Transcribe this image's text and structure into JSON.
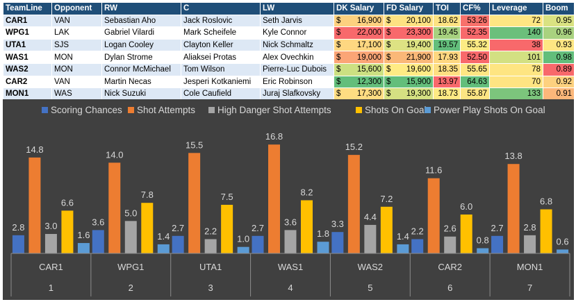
{
  "table": {
    "headers": [
      "TeamLine",
      "Opponent",
      "RW",
      "C",
      "LW",
      "DK Salary",
      "FD Salary",
      "TOI",
      "CF%",
      "Leverage",
      "Boom"
    ],
    "currency_symbol": "$",
    "rows": [
      {
        "team": "CAR1",
        "opponent": "VAN",
        "rw": "Sebastian Aho",
        "c": "Jack Roslovic",
        "lw": "Seth Jarvis",
        "dk": "16,900",
        "fd": "20,100",
        "toi": "18.62",
        "cf": "53.26",
        "leverage": "72",
        "boom": "0.95",
        "colors": {
          "dk": "#fdd17f",
          "fd": "#fde282",
          "toi": "#fde382",
          "cf": "#f8716b",
          "leverage": "#fee683",
          "boom": "#dae282"
        }
      },
      {
        "team": "WPG1",
        "opponent": "LAK",
        "rw": "Gabriel Vilardi",
        "c": "Mark Scheifele",
        "lw": "Kyle Connor",
        "dk": "22,000",
        "fd": "23,300",
        "toi": "19.45",
        "cf": "52.35",
        "leverage": "140",
        "boom": "0.96",
        "colors": {
          "dk": "#f8696b",
          "fd": "#f8696b",
          "toi": "#a7d27f",
          "cf": "#f8696b",
          "leverage": "#6bbf7b",
          "boom": "#a9d27f"
        }
      },
      {
        "team": "UTA1",
        "opponent": "SJS",
        "rw": "Logan Cooley",
        "c": "Clayton Keller",
        "lw": "Nick Schmaltz",
        "dk": "17,100",
        "fd": "19,400",
        "toi": "19.57",
        "cf": "55.32",
        "leverage": "38",
        "boom": "0.93",
        "colors": {
          "dk": "#fed781",
          "fd": "#dde283",
          "toi": "#63be7b",
          "cf": "#fdeb84",
          "leverage": "#f8696b",
          "boom": "#fee783"
        }
      },
      {
        "team": "WAS1",
        "opponent": "MON",
        "rw": "Dylan Strome",
        "c": "Aliaksei Protas",
        "lw": "Alex Ovechkin",
        "dk": "19,000",
        "fd": "21,900",
        "toi": "17.93",
        "cf": "52.50",
        "leverage": "101",
        "boom": "0.98",
        "colors": {
          "dk": "#fba576",
          "fd": "#fab878",
          "toi": "#fed780",
          "cf": "#f8696b",
          "leverage": "#d3e082",
          "boom": "#63be7b"
        }
      },
      {
        "team": "WAS2",
        "opponent": "MON",
        "rw": "Connor McMichael",
        "c": "Tom Wilson",
        "lw": "Pierre-Luc Dubois",
        "dk": "15,600",
        "fd": "19,600",
        "toi": "18.35",
        "cf": "55.65",
        "leverage": "78",
        "boom": "0.89",
        "colors": {
          "dk": "#cce082",
          "fd": "#ffeb84",
          "toi": "#fedf82",
          "cf": "#fee683",
          "leverage": "#fee582",
          "boom": "#f8696b"
        }
      },
      {
        "team": "CAR2",
        "opponent": "VAN",
        "rw": "Martin Necas",
        "c": "Jesperi Kotkaniemi",
        "lw": "Eric Robinson",
        "dk": "12,300",
        "fd": "15,900",
        "toi": "13.97",
        "cf": "64.63",
        "leverage": "70",
        "boom": "0.92",
        "colors": {
          "dk": "#63be7b",
          "fd": "#63be7b",
          "toi": "#f8696b",
          "cf": "#63be7b",
          "leverage": "#fee482",
          "boom": "#fdd17f"
        }
      },
      {
        "team": "MON1",
        "opponent": "WAS",
        "rw": "Nick Suzuki",
        "c": "Cole Caufield",
        "lw": "Juraj Slafkovsky",
        "dk": "17,300",
        "fd": "19,300",
        "toi": "18.73",
        "cf": "55.87",
        "leverage": "133",
        "boom": "0.91",
        "colors": {
          "dk": "#fedd82",
          "fd": "#d5e082",
          "toi": "#feea83",
          "cf": "#fde583",
          "leverage": "#7cc57c",
          "boom": "#fcb77a"
        }
      }
    ]
  },
  "chart_data": {
    "type": "bar",
    "title": "",
    "xlabel": "",
    "ylabel": "",
    "ylim": [
      0,
      18
    ],
    "grid": false,
    "legend_position": "top",
    "categories": [
      "CAR1",
      "WPG1",
      "UTA1",
      "WAS1",
      "WAS2",
      "CAR2",
      "MON1"
    ],
    "category_groups": [
      "1",
      "2",
      "3",
      "4",
      "5",
      "6",
      "7"
    ],
    "series": [
      {
        "name": "Scoring Chances",
        "color": "#4472c4",
        "values": [
          2.8,
          3.6,
          2.7,
          2.7,
          3.3,
          2.2,
          2.7
        ]
      },
      {
        "name": "Shot Attempts",
        "color": "#ed7d31",
        "values": [
          14.8,
          14.0,
          15.5,
          16.8,
          15.2,
          11.6,
          13.8
        ]
      },
      {
        "name": "High Danger Shot Attempts",
        "color": "#a5a5a5",
        "values": [
          3.0,
          5.0,
          2.2,
          3.6,
          4.4,
          2.6,
          2.8
        ]
      },
      {
        "name": "Shots On Goal",
        "color": "#ffc000",
        "values": [
          6.6,
          7.8,
          7.5,
          8.2,
          7.2,
          6.0,
          6.8
        ]
      },
      {
        "name": "Power Play Shots On Goal",
        "color": "#5b9bd5",
        "values": [
          1.6,
          1.4,
          1.0,
          1.8,
          1.4,
          0.8,
          0.6
        ]
      }
    ]
  }
}
